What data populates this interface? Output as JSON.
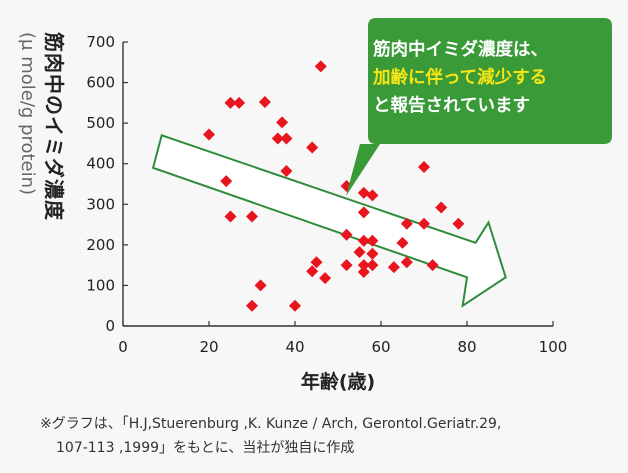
{
  "chart_data": {
    "type": "scatter",
    "ylabel_main": "筋肉中のイミダ濃度",
    "ylabel_unit": "(μ mole/g protein)",
    "xlabel": "年齢(歳)",
    "xlim": [
      0,
      100
    ],
    "ylim": [
      0,
      700
    ],
    "xticks": [
      "0",
      "20",
      "40",
      "60",
      "80",
      "100"
    ],
    "yticks": [
      "0",
      "100",
      "200",
      "300",
      "400",
      "500",
      "600",
      "700"
    ],
    "grid": false,
    "marker_color": "#e8141e",
    "points": [
      {
        "x": 46,
        "y": 640
      },
      {
        "x": 25,
        "y": 550
      },
      {
        "x": 27,
        "y": 550
      },
      {
        "x": 33,
        "y": 552
      },
      {
        "x": 37,
        "y": 502
      },
      {
        "x": 38,
        "y": 462
      },
      {
        "x": 36,
        "y": 462
      },
      {
        "x": 20,
        "y": 472
      },
      {
        "x": 44,
        "y": 440
      },
      {
        "x": 38,
        "y": 382
      },
      {
        "x": 70,
        "y": 392
      },
      {
        "x": 24,
        "y": 357
      },
      {
        "x": 52,
        "y": 345
      },
      {
        "x": 56,
        "y": 328
      },
      {
        "x": 58,
        "y": 322
      },
      {
        "x": 56,
        "y": 280
      },
      {
        "x": 74,
        "y": 292
      },
      {
        "x": 25,
        "y": 270
      },
      {
        "x": 30,
        "y": 270
      },
      {
        "x": 66,
        "y": 252
      },
      {
        "x": 70,
        "y": 252
      },
      {
        "x": 78,
        "y": 252
      },
      {
        "x": 52,
        "y": 225
      },
      {
        "x": 56,
        "y": 210
      },
      {
        "x": 58,
        "y": 210
      },
      {
        "x": 65,
        "y": 205
      },
      {
        "x": 55,
        "y": 182
      },
      {
        "x": 58,
        "y": 178
      },
      {
        "x": 45,
        "y": 157
      },
      {
        "x": 52,
        "y": 150
      },
      {
        "x": 56,
        "y": 150
      },
      {
        "x": 58,
        "y": 150
      },
      {
        "x": 66,
        "y": 157
      },
      {
        "x": 72,
        "y": 150
      },
      {
        "x": 63,
        "y": 145
      },
      {
        "x": 44,
        "y": 135
      },
      {
        "x": 56,
        "y": 133
      },
      {
        "x": 47,
        "y": 118
      },
      {
        "x": 32,
        "y": 100
      },
      {
        "x": 30,
        "y": 50
      },
      {
        "x": 40,
        "y": 50
      }
    ],
    "trend_arrow": {
      "color": "#2e8b3a",
      "tail_top": [
        9,
        470
      ],
      "tail_bottom": [
        7,
        390
      ],
      "shaft_top_end": [
        82,
        205
      ],
      "shaft_bottom_end": [
        80,
        120
      ],
      "head_top": [
        85,
        255
      ],
      "head_bottom": [
        79,
        50
      ],
      "tip": [
        89,
        120
      ]
    }
  },
  "callout": {
    "bg_color": "#3a9a38",
    "highlight_color": "#f7e614",
    "line1": "筋肉中イミダ濃度は、",
    "line2": "加齢に伴って減少する",
    "line3": "と報告されています"
  },
  "note": {
    "line1": "※グラフは、「H.J,Stuerenburg ,K. Kunze / Arch, Gerontol.Geriatr.29,",
    "line2": "107-113 ,1999」をもとに、当社が独自に作成"
  }
}
